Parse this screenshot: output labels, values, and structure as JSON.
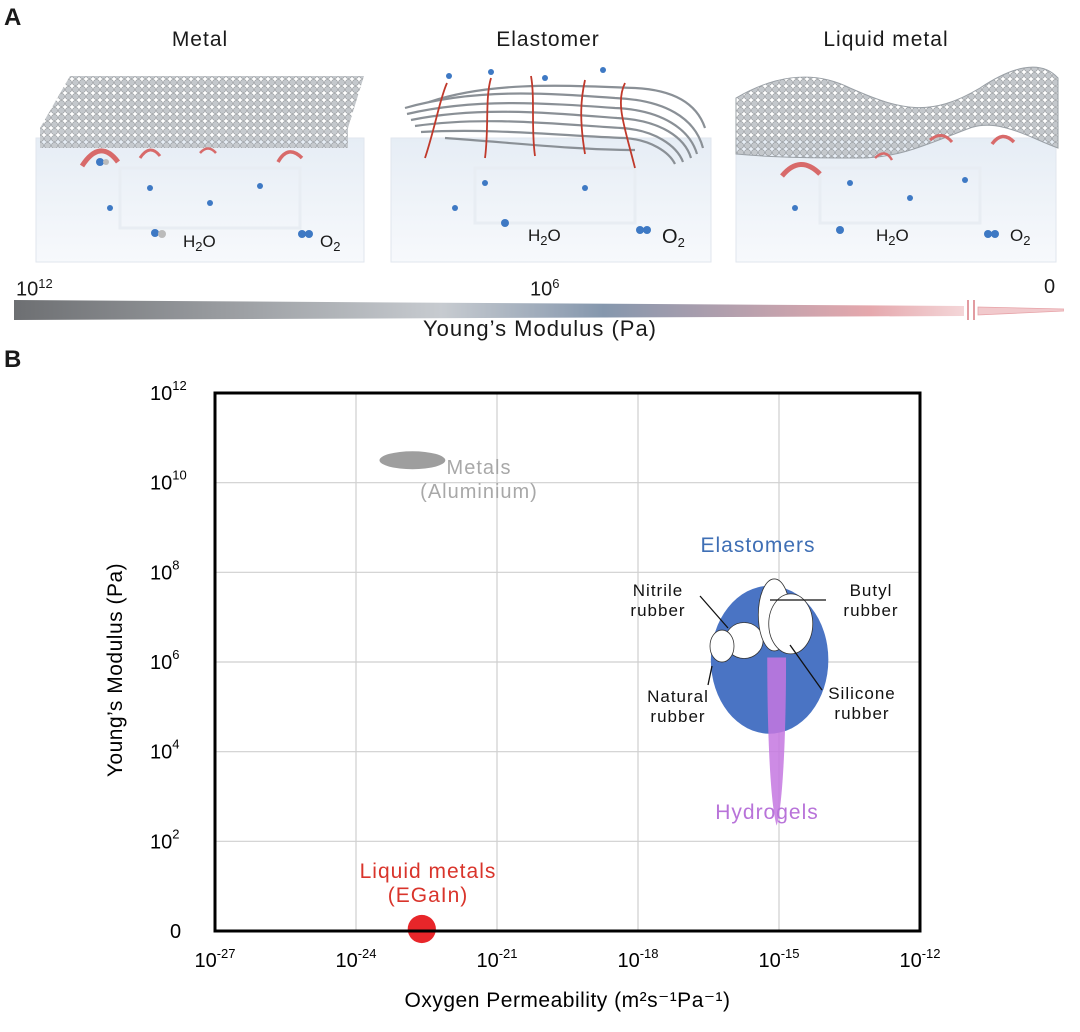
{
  "panel_a": {
    "letter": "A",
    "titles": [
      "Metal",
      "Elastomer",
      "Liquid metal"
    ],
    "molecule_labels": {
      "h2o_main": "H",
      "h2o_sub": "2",
      "h2o_tail": "O",
      "o2_main": "O",
      "o2_sub": "2"
    },
    "modulus_bar": {
      "label": "Young’s Modulus (Pa)",
      "ticks": [
        {
          "base": "10",
          "exp": "12"
        },
        {
          "base": "10",
          "exp": "6"
        },
        {
          "base": "0",
          "exp": ""
        }
      ]
    }
  },
  "panel_b": {
    "letter": "B"
  },
  "colors": {
    "metal": "#9e9e9e",
    "elastomer_region": "#4a74c4",
    "hydrogel": "#c477e0",
    "liquid_metal": "#e8262a",
    "hydrogel_text": "#b873d9",
    "liquid_text": "#d9342b",
    "metal_text": "#a8a8a8",
    "elastomer_text": "#3f6fb5"
  },
  "chart_data": {
    "type": "scatter",
    "xlabel": "Oxygen Permeability (m²s⁻¹Pa⁻¹)",
    "ylabel": "Young’s Modulus (Pa)",
    "x_axis": {
      "scale": "log",
      "range_exp": [
        -27,
        -12
      ],
      "tick_exps": [
        -27,
        -24,
        -21,
        -18,
        -15,
        -12
      ]
    },
    "y_axis": {
      "scale": "log",
      "range_exp": [
        0,
        12
      ],
      "tick_labels": [
        {
          "exp": 0,
          "base": "0",
          "sup": ""
        },
        {
          "exp": 2,
          "base": "10",
          "sup": "2"
        },
        {
          "exp": 4,
          "base": "10",
          "sup": "4"
        },
        {
          "exp": 6,
          "base": "10",
          "sup": "6"
        },
        {
          "exp": 8,
          "base": "10",
          "sup": "8"
        },
        {
          "exp": 10,
          "base": "10",
          "sup": "10"
        },
        {
          "exp": 12,
          "base": "10",
          "sup": "12"
        }
      ]
    },
    "grid": true,
    "regions": [
      {
        "name": "Metals (Aluminium)",
        "label_lines": [
          "Metals",
          "(Aluminium)"
        ],
        "log_x": -22.8,
        "log_y": 10.5,
        "log_rx": 0.7,
        "log_ry": 0.2,
        "color": "#9e9e9e"
      },
      {
        "name": "Elastomers",
        "label_lines": [
          "Elastomers"
        ],
        "log_x": -15.2,
        "log_y": 6.05,
        "log_rx": 1.25,
        "log_ry": 1.65,
        "color": "#4a74c4"
      },
      {
        "name": "Hydrogels",
        "label_lines": [
          "Hydrogels"
        ],
        "log_x": -15.05,
        "log_y": 4.4,
        "log_rx": 0.2,
        "log_ry": 2.0,
        "color": "#c477e0"
      },
      {
        "name": "Liquid metals (EGaIn)",
        "label_lines": [
          "Liquid metals",
          "(EGaIn)"
        ],
        "log_x": -22.6,
        "log_y": 0.1,
        "log_rx": 0.3,
        "log_ry": 0.3,
        "color": "#e8262a"
      }
    ],
    "sub_materials": [
      {
        "name": "Nitrile rubber",
        "label_lines": [
          "Nitrile",
          "rubber"
        ],
        "log_x": -15.7,
        "log_y": 6.5
      },
      {
        "name": "Natural rubber",
        "label_lines": [
          "Natural",
          "rubber"
        ],
        "log_x": -14.9,
        "log_y": 7.0
      },
      {
        "name": "Butyl rubber",
        "label_lines": [
          "Butyl",
          "rubber"
        ],
        "log_x": -16.0,
        "log_y": 6.4
      },
      {
        "name": "Silicone rubber",
        "label_lines": [
          "Silicone",
          "rubber"
        ],
        "log_x": -14.6,
        "log_y": 6.6
      }
    ]
  }
}
